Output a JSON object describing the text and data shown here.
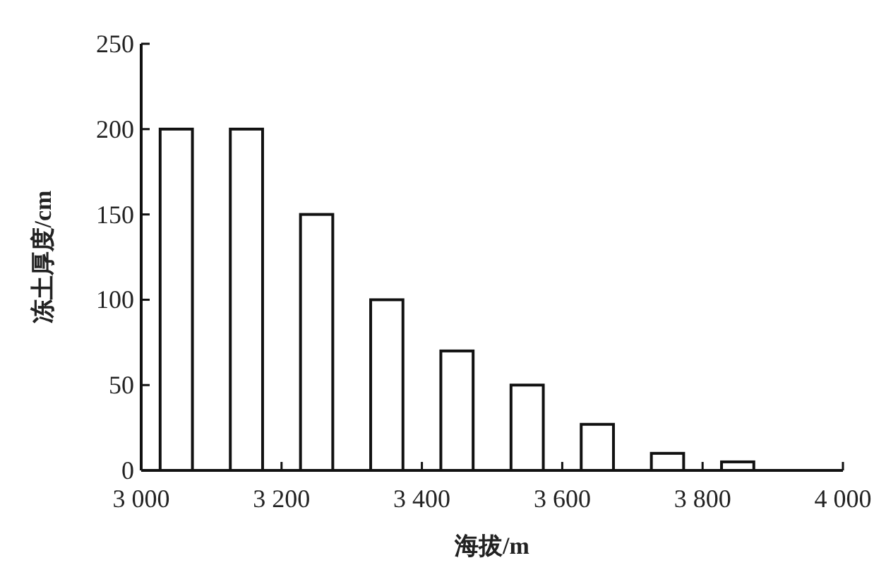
{
  "chart_data": {
    "type": "bar",
    "xlabel": "海拔/m",
    "ylabel": "冻土厚度/cm",
    "x": [
      3050,
      3150,
      3250,
      3350,
      3450,
      3550,
      3650,
      3750,
      3850
    ],
    "values": [
      200,
      200,
      150,
      100,
      70,
      50,
      27,
      10,
      5
    ],
    "color": "#ffffff",
    "xlim": [
      3000,
      4000
    ],
    "xticks": [
      {
        "value": 3000,
        "label": "3 000"
      },
      {
        "value": 3200,
        "label": "3 200"
      },
      {
        "value": 3400,
        "label": "3 400"
      },
      {
        "value": 3600,
        "label": "3 600"
      },
      {
        "value": 3800,
        "label": "3 800"
      },
      {
        "value": 4000,
        "label": "4 000"
      }
    ],
    "ylim": [
      0,
      250
    ],
    "yticks": [
      0,
      50,
      100,
      150,
      200,
      250
    ]
  }
}
